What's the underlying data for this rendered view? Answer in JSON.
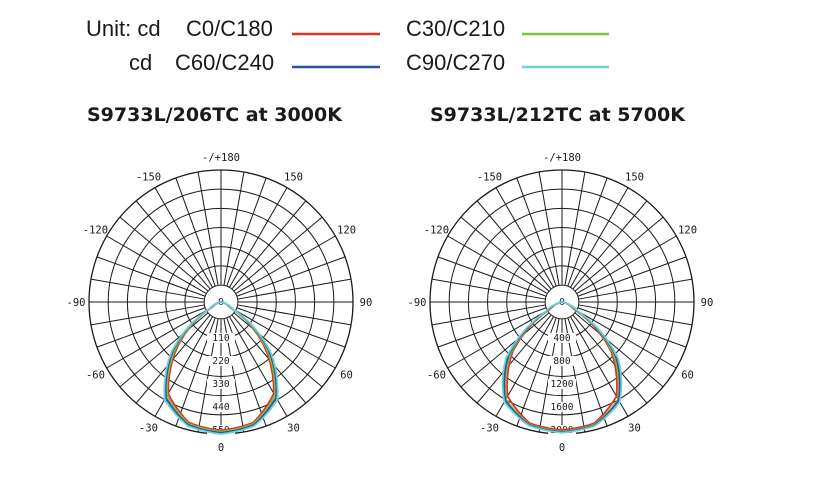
{
  "legend": {
    "unit_prefix": "Unit: cd",
    "cd_prefix": "cd",
    "items": [
      {
        "label": "C0/C180",
        "color": "#e03127"
      },
      {
        "label": "C30/C210",
        "color": "#7cc242"
      },
      {
        "label": "C60/C240",
        "color": "#3050a0"
      },
      {
        "label": "C90/C270",
        "color": "#6fd0d8"
      }
    ]
  },
  "chart_data": [
    {
      "type": "polar",
      "title": "S9733L/206TC at 3000K",
      "unit": "cd",
      "angle_labels": [
        "0",
        "30",
        "60",
        "90",
        "120",
        "150",
        "-/+180",
        "-150",
        "-120",
        "-90",
        "-60",
        "-30"
      ],
      "radial_ticks": [
        "110",
        "220",
        "330",
        "440",
        "550"
      ],
      "rmax": 550,
      "series": [
        {
          "name": "C0/C180",
          "color": "#e03127",
          "peak": 535,
          "angles_deg": [
            -90,
            -75,
            -60,
            -45,
            -30,
            -15,
            0,
            15,
            30,
            45,
            60,
            75,
            90
          ],
          "values": [
            0,
            10,
            40,
            250,
            440,
            520,
            535,
            520,
            440,
            250,
            40,
            10,
            0
          ]
        },
        {
          "name": "C30/C210",
          "color": "#7cc242",
          "peak": 540,
          "angles_deg": [
            -90,
            -75,
            -60,
            -45,
            -30,
            -15,
            0,
            15,
            30,
            45,
            60,
            75,
            90
          ],
          "values": [
            0,
            10,
            45,
            265,
            450,
            525,
            540,
            525,
            450,
            265,
            45,
            10,
            0
          ]
        },
        {
          "name": "C60/C240",
          "color": "#3050a0",
          "peak": 545,
          "angles_deg": [
            -90,
            -75,
            -60,
            -45,
            -30,
            -15,
            0,
            15,
            30,
            45,
            60,
            75,
            90
          ],
          "values": [
            0,
            12,
            50,
            280,
            460,
            530,
            545,
            530,
            460,
            280,
            50,
            12,
            0
          ]
        },
        {
          "name": "C90/C270",
          "color": "#6fd0d8",
          "peak": 550,
          "angles_deg": [
            -90,
            -75,
            -60,
            -45,
            -30,
            -15,
            0,
            15,
            30,
            45,
            60,
            75,
            90
          ],
          "values": [
            0,
            12,
            55,
            290,
            470,
            535,
            550,
            535,
            470,
            290,
            55,
            12,
            0
          ]
        }
      ]
    },
    {
      "type": "polar",
      "title": "S9733L/212TC at 5700K",
      "unit": "cd",
      "angle_labels": [
        "0",
        "30",
        "60",
        "90",
        "120",
        "150",
        "-/+180",
        "-150",
        "-120",
        "-90",
        "-60",
        "-30"
      ],
      "radial_ticks": [
        "400",
        "800",
        "1200",
        "1600",
        "2000"
      ],
      "rmax": 2000,
      "series": [
        {
          "name": "C0/C180",
          "color": "#e03127",
          "peak": 1940,
          "angles_deg": [
            -90,
            -75,
            -60,
            -45,
            -30,
            -15,
            0,
            15,
            30,
            45,
            60,
            75,
            90
          ],
          "values": [
            0,
            30,
            200,
            1050,
            1650,
            1900,
            1940,
            1900,
            1650,
            1050,
            200,
            30,
            0
          ]
        },
        {
          "name": "C30/C210",
          "color": "#7cc242",
          "peak": 1960,
          "angles_deg": [
            -90,
            -75,
            -60,
            -45,
            -30,
            -15,
            0,
            15,
            30,
            45,
            60,
            75,
            90
          ],
          "values": [
            0,
            40,
            240,
            1100,
            1700,
            1920,
            1960,
            1920,
            1700,
            1100,
            240,
            40,
            0
          ]
        },
        {
          "name": "C60/C240",
          "color": "#3050a0",
          "peak": 1970,
          "angles_deg": [
            -90,
            -75,
            -60,
            -45,
            -30,
            -15,
            0,
            15,
            30,
            45,
            60,
            75,
            90
          ],
          "values": [
            0,
            45,
            260,
            1150,
            1720,
            1930,
            1970,
            1930,
            1720,
            1150,
            260,
            45,
            0
          ]
        },
        {
          "name": "C90/C270",
          "color": "#6fd0d8",
          "peak": 1980,
          "angles_deg": [
            -90,
            -75,
            -60,
            -45,
            -30,
            -15,
            0,
            15,
            30,
            45,
            60,
            75,
            90
          ],
          "values": [
            0,
            50,
            280,
            1200,
            1750,
            1940,
            1980,
            1940,
            1750,
            1200,
            280,
            50,
            0
          ]
        }
      ]
    }
  ]
}
